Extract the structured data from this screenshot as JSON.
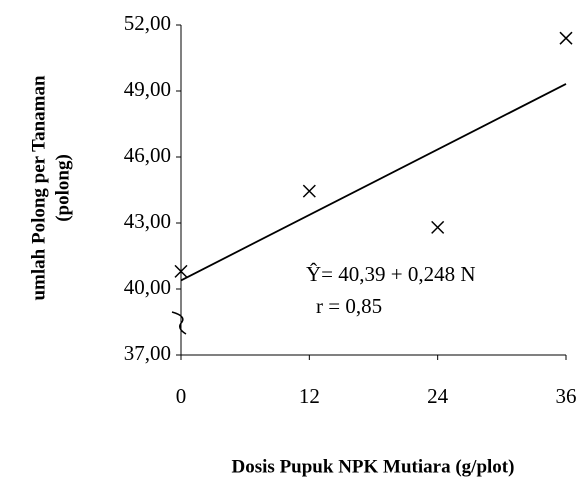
{
  "chart_data": {
    "type": "scatter",
    "y_label": [
      "umlah Polong per Tanaman",
      "(polong)"
    ],
    "x_label": "Dosis Pupuk NPK Mutiara (g/plot)",
    "annotations": [
      "Ŷ=  40,39 + 0,248 N",
      "r = 0,85"
    ],
    "series": [
      {
        "color": "#000000",
        "x": [
          0,
          12,
          24,
          36
        ],
        "values": [
          40.8,
          44.45,
          42.8,
          51.4
        ]
      }
    ],
    "fit": {
      "color": "#000000",
      "x": [
        0,
        36
      ],
      "values": [
        40.39,
        49.32
      ]
    },
    "xlim": [
      0,
      36
    ],
    "xticks": [
      0,
      12,
      24,
      36
    ],
    "ylim": [
      37,
      52
    ],
    "yticks": [
      {
        "value": 37,
        "label": "37,00"
      },
      {
        "value": 40,
        "label": "40,00"
      },
      {
        "value": 43,
        "label": "43,00"
      },
      {
        "value": 46,
        "label": "46,00"
      },
      {
        "value": 49,
        "label": "49,00"
      },
      {
        "value": 52,
        "label": "52,00"
      }
    ],
    "grid": false
  }
}
